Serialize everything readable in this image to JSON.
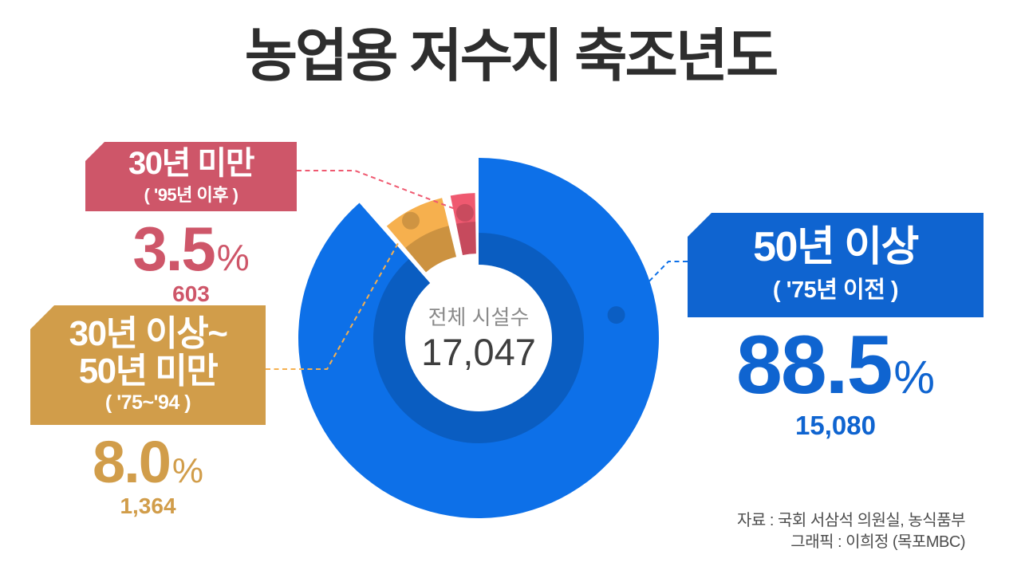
{
  "title": "농업용 저수지 축조년도",
  "chart_data": {
    "type": "donut",
    "title": "농업용 저수지 축조년도",
    "center": {
      "label": "전체 시설수",
      "value": "17,047",
      "total": 17047
    },
    "unit": "%",
    "legend_position": "callouts",
    "segments": [
      {
        "id": "over-50y",
        "label": "50년 이상",
        "sublabel": "( '75년 이전 )",
        "pct": 88.5,
        "pct_display": "88.5",
        "count": 15080,
        "count_display": "15,080",
        "color": "#0d70e8",
        "accent": "#0f64d0"
      },
      {
        "id": "30-to-50y",
        "label": "30년 이상~\n50년 미만",
        "sublabel": "( '75~'94 )",
        "pct": 8.0,
        "pct_display": "8.0",
        "count": 1364,
        "count_display": "1,364",
        "color": "#f6b04e",
        "accent": "#d19d4a"
      },
      {
        "id": "under-30y",
        "label": "30년 미만",
        "sublabel": "( '95년 이후 )",
        "pct": 3.5,
        "pct_display": "3.5",
        "count": 603,
        "count_display": "603",
        "color": "#ef5970",
        "accent": "#ce5669"
      }
    ]
  },
  "credits": {
    "source": "자료 : 국회 서삼석 의원실, 농식품부",
    "graphic": "그래픽 : 이희정 (목포MBC)"
  }
}
